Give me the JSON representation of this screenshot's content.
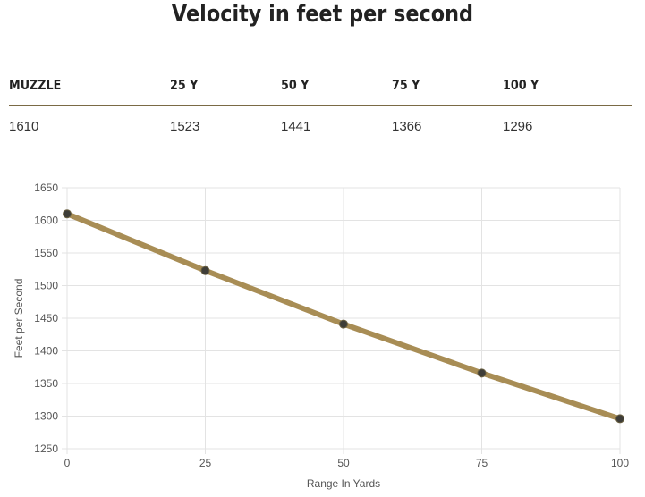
{
  "title": "Velocity in feet per second",
  "table": {
    "headers": [
      "MUZZLE",
      "25 Y",
      "50 Y",
      "75 Y",
      "100 Y"
    ],
    "values": [
      "1610",
      "1523",
      "1441",
      "1366",
      "1296"
    ]
  },
  "chart_data": {
    "type": "line",
    "x": [
      0,
      25,
      50,
      75,
      100
    ],
    "values": [
      1610,
      1523,
      1441,
      1366,
      1296
    ],
    "xlabel": "Range In Yards",
    "ylabel": "Feet per Second",
    "xlim": [
      0,
      100
    ],
    "ylim": [
      1250,
      1650
    ],
    "xticks": [
      0,
      25,
      50,
      75,
      100
    ],
    "yticks": [
      1250,
      1300,
      1350,
      1400,
      1450,
      1500,
      1550,
      1600,
      1650
    ],
    "grid": true,
    "legend": "none",
    "colors": {
      "line": "#a88d55",
      "marker": "#3e3d38",
      "grid": "#e3e3e3"
    }
  }
}
